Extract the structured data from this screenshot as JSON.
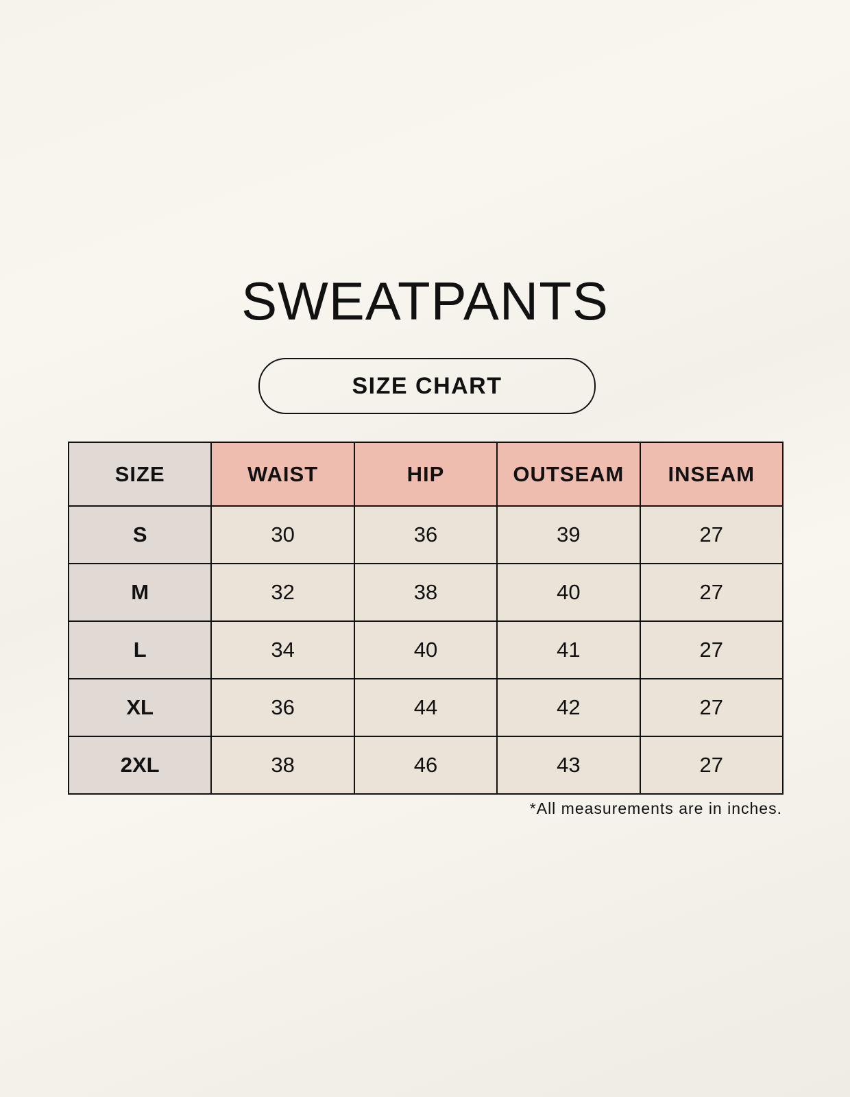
{
  "title": "SWEATPANTS",
  "subtitle": "SIZE CHART",
  "colors": {
    "header_accent": "#eebdb0",
    "size_column": "#e0d9d4",
    "cell": "#ebe2d8",
    "border": "#111111"
  },
  "table": {
    "headers": [
      "SIZE",
      "WAIST",
      "HIP",
      "OUTSEAM",
      "INSEAM"
    ],
    "rows": [
      [
        "S",
        "30",
        "36",
        "39",
        "27"
      ],
      [
        "M",
        "32",
        "38",
        "40",
        "27"
      ],
      [
        "L",
        "34",
        "40",
        "41",
        "27"
      ],
      [
        "XL",
        "36",
        "44",
        "42",
        "27"
      ],
      [
        "2XL",
        "38",
        "46",
        "43",
        "27"
      ]
    ]
  },
  "footnote": "*All measurements are in inches."
}
